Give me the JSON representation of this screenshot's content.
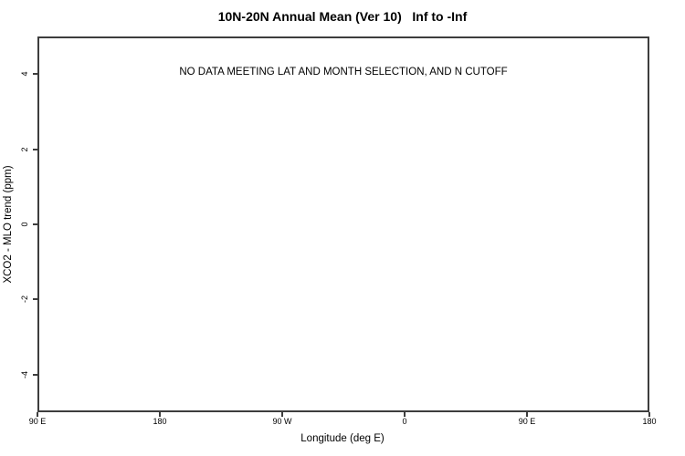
{
  "page": {
    "background": "#ffffff",
    "axis_color": "#3d3d3d",
    "text_color": "#000000"
  },
  "chart_data": {
    "type": "scatter",
    "title": "10N-20N Annual Mean (Ver 10)   Inf to -Inf",
    "xlabel": "Longitude (deg E)",
    "ylabel": "XCO2 - MLO trend (ppm)",
    "annotation": "NO DATA MEETING LAT AND MONTH SELECTION, AND N CUTOFF",
    "series": [],
    "x_tick_labels": [
      "90 E",
      "180",
      "90 W",
      "0",
      "90 E",
      "180"
    ],
    "y_tick_values": [
      -4,
      -2,
      0,
      2,
      4
    ],
    "y_tick_labels": [
      "-4",
      "-2",
      "0",
      "2",
      "4"
    ],
    "ylim": [
      -5,
      5
    ],
    "grid": false,
    "legend": false,
    "notes": "empty plot region, no data points rendered"
  }
}
